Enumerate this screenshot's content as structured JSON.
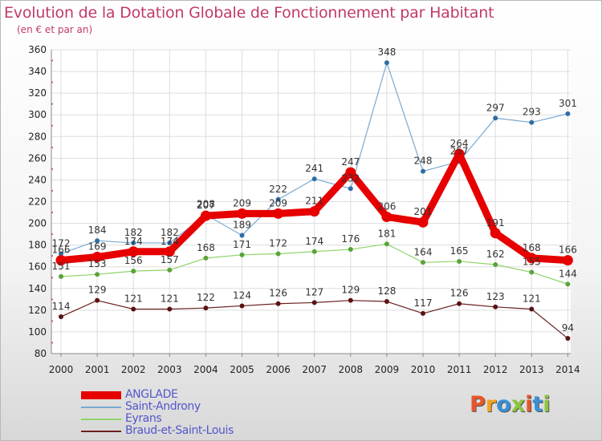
{
  "title": "Evolution de la Dotation Globale de Fonctionnement par Habitant",
  "subtitle": "(en € et par an)",
  "logo": {
    "text": "Proxiti",
    "colors": [
      "#e8562a",
      "#f5a31a",
      "#3a8fd6",
      "#8dc63f",
      "#e8562a",
      "#3a8fd6",
      "#8dc63f"
    ]
  },
  "chart_data": {
    "type": "line",
    "x": [
      "2000",
      "2001",
      "2002",
      "2003",
      "2004",
      "2005",
      "2006",
      "2007",
      "2008",
      "2009",
      "2010",
      "2011",
      "2012",
      "2013",
      "2014"
    ],
    "ylim": [
      80,
      360
    ],
    "yticks": [
      80,
      100,
      120,
      140,
      160,
      180,
      200,
      220,
      240,
      260,
      280,
      300,
      320,
      340,
      360
    ],
    "grid": true,
    "legend_position": "bottom-left",
    "series": [
      {
        "name": "ANGLADE",
        "color": "#e60000",
        "values": [
          166,
          169,
          174,
          174,
          207,
          209,
          209,
          211,
          247,
          206,
          201,
          264,
          191,
          168,
          166
        ]
      },
      {
        "name": "Saint-Androny",
        "color": "#78a9d3",
        "values": [
          172,
          184,
          182,
          182,
          208,
          189,
          222,
          241,
          232,
          348,
          248,
          257,
          297,
          293,
          301
        ]
      },
      {
        "name": "Eyrans",
        "color": "#8fd36a",
        "values": [
          151,
          153,
          156,
          157,
          168,
          171,
          172,
          174,
          176,
          181,
          164,
          165,
          162,
          155,
          144
        ]
      },
      {
        "name": "Braud-et-Saint-Louis",
        "color": "#6b2020",
        "values": [
          114,
          129,
          121,
          121,
          122,
          124,
          126,
          127,
          129,
          128,
          117,
          126,
          123,
          121,
          94
        ]
      }
    ],
    "data_labels": [
      {
        "series": 0,
        "labels": [
          "166",
          "169",
          "174",
          "174",
          "207",
          "209",
          "209",
          "211",
          "247",
          "206",
          "201",
          "264",
          "191",
          "168",
          "166"
        ]
      },
      {
        "series": 1,
        "labels": [
          "172",
          "184",
          "182",
          "182",
          "208",
          "189",
          "222",
          "241",
          "232",
          "348",
          "248",
          "257",
          "297",
          "293",
          "301"
        ]
      },
      {
        "series": 2,
        "labels": [
          "151",
          "153",
          "156",
          "157",
          "168",
          "171",
          "172",
          "174",
          "176",
          "181",
          "164",
          "165",
          "162",
          "155",
          "144"
        ]
      },
      {
        "series": 3,
        "labels": [
          "114",
          "129",
          "121",
          "121",
          "122",
          "124",
          "126",
          "127",
          "129",
          "128",
          "117",
          "126",
          "123",
          "121",
          "94"
        ]
      }
    ]
  }
}
